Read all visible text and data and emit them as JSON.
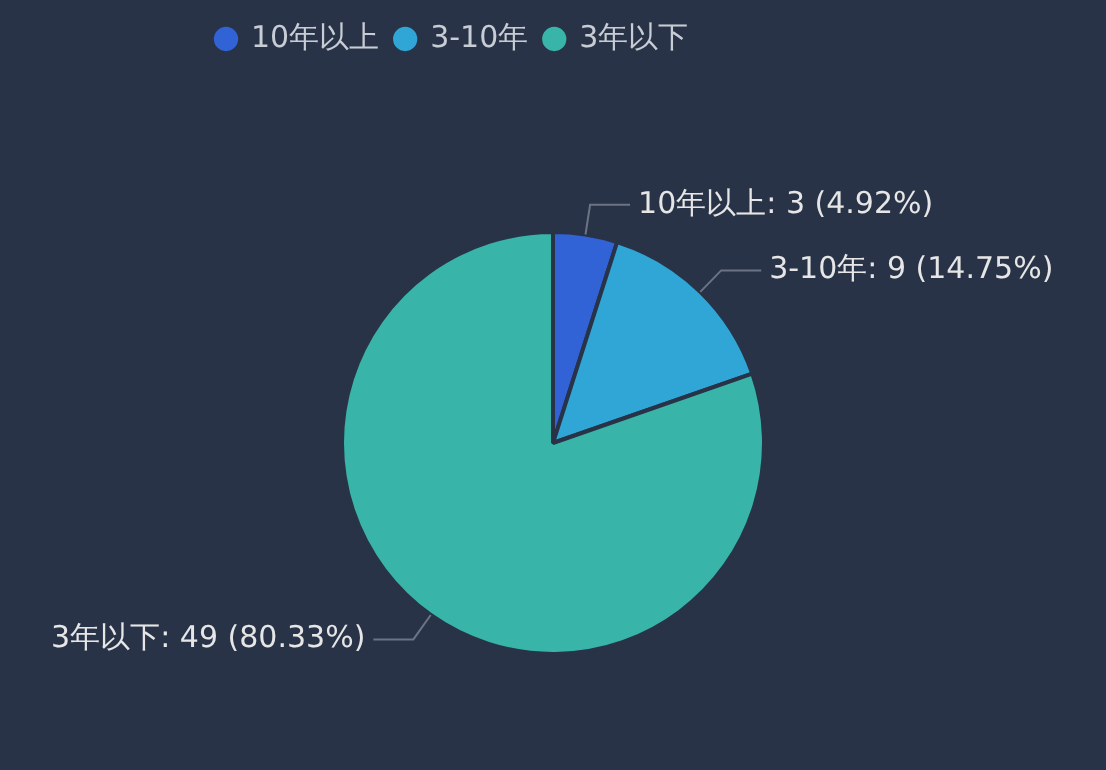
{
  "chart_data": {
    "type": "pie",
    "categories": [
      "10年以上",
      "3-10年",
      "3年以下"
    ],
    "values": [
      3,
      9,
      49
    ],
    "colors": [
      "#3163d6",
      "#2fa6d6",
      "#38b5a8"
    ],
    "value_labels": [
      "10年以上: 3 (4.92%)",
      "3-10年: 9 (14.75%)",
      "3年以下: 49 (80.33%)"
    ],
    "legend": "top left"
  }
}
